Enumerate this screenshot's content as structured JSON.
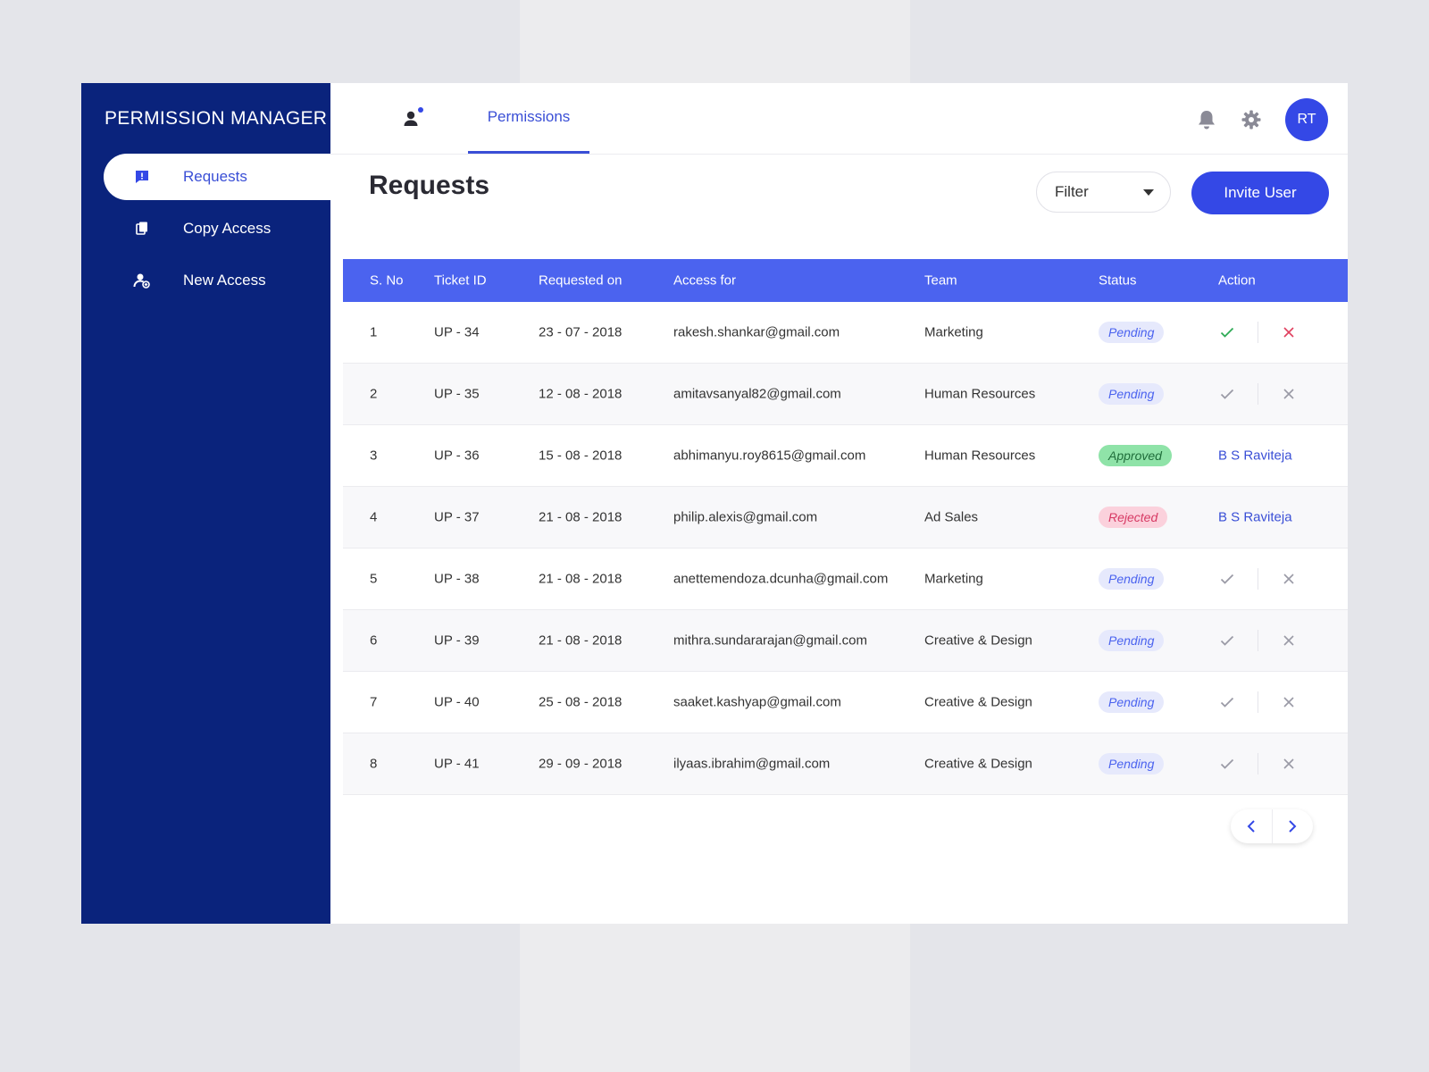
{
  "app": {
    "title": "PERMISSION MANAGER"
  },
  "sidebar": {
    "items": [
      {
        "label": "Requests",
        "icon": "message-alert-icon",
        "active": true
      },
      {
        "label": "Copy Access",
        "icon": "copy-icon",
        "active": false
      },
      {
        "label": "New Access",
        "icon": "user-add-icon",
        "active": false
      }
    ]
  },
  "topbar": {
    "tab": "Permissions",
    "avatar_initials": "RT"
  },
  "page": {
    "title": "Requests",
    "filter_label": "Filter",
    "invite_label": "Invite User"
  },
  "table": {
    "headers": [
      "S. No",
      "Ticket ID",
      "Requested on",
      "Access for",
      "Team",
      "Status",
      "Action"
    ],
    "rows": [
      {
        "sno": "1",
        "ticket": "UP - 34",
        "date": "23 - 07 - 2018",
        "email": "rakesh.shankar@gmail.com",
        "team": "Marketing",
        "status": "Pending",
        "approver": "",
        "highlight": true
      },
      {
        "sno": "2",
        "ticket": "UP - 35",
        "date": "12 - 08 - 2018",
        "email": "amitavsanyal82@gmail.com",
        "team": "Human Resources",
        "status": "Pending",
        "approver": "",
        "highlight": false
      },
      {
        "sno": "3",
        "ticket": "UP - 36",
        "date": "15 - 08 - 2018",
        "email": "abhimanyu.roy8615@gmail.com",
        "team": "Human Resources",
        "status": "Approved",
        "approver": "B S Raviteja",
        "highlight": false
      },
      {
        "sno": "4",
        "ticket": "UP - 37",
        "date": "21 - 08 - 2018",
        "email": "philip.alexis@gmail.com",
        "team": "Ad Sales",
        "status": "Rejected",
        "approver": "B S Raviteja",
        "highlight": false
      },
      {
        "sno": "5",
        "ticket": "UP - 38",
        "date": "21 - 08 - 2018",
        "email": "anettemendoza.dcunha@gmail.com",
        "team": "Marketing",
        "status": "Pending",
        "approver": "",
        "highlight": false
      },
      {
        "sno": "6",
        "ticket": "UP - 39",
        "date": "21 - 08 - 2018",
        "email": "mithra.sundararajan@gmail.com",
        "team": "Creative & Design",
        "status": "Pending",
        "approver": "",
        "highlight": false
      },
      {
        "sno": "7",
        "ticket": "UP - 40",
        "date": "25 - 08 - 2018",
        "email": "saaket.kashyap@gmail.com",
        "team": "Creative & Design",
        "status": "Pending",
        "approver": "",
        "highlight": false
      },
      {
        "sno": "8",
        "ticket": "UP - 41",
        "date": "29 - 09 - 2018",
        "email": "ilyaas.ibrahim@gmail.com",
        "team": "Creative & Design",
        "status": "Pending",
        "approver": "",
        "highlight": false
      }
    ]
  },
  "colors": {
    "sidebar": "#0a237c",
    "accent": "#3448e6",
    "header": "#4b63ef",
    "approve": "#2eaa55",
    "reject": "#e0405f",
    "muted": "#9a9aa6"
  }
}
